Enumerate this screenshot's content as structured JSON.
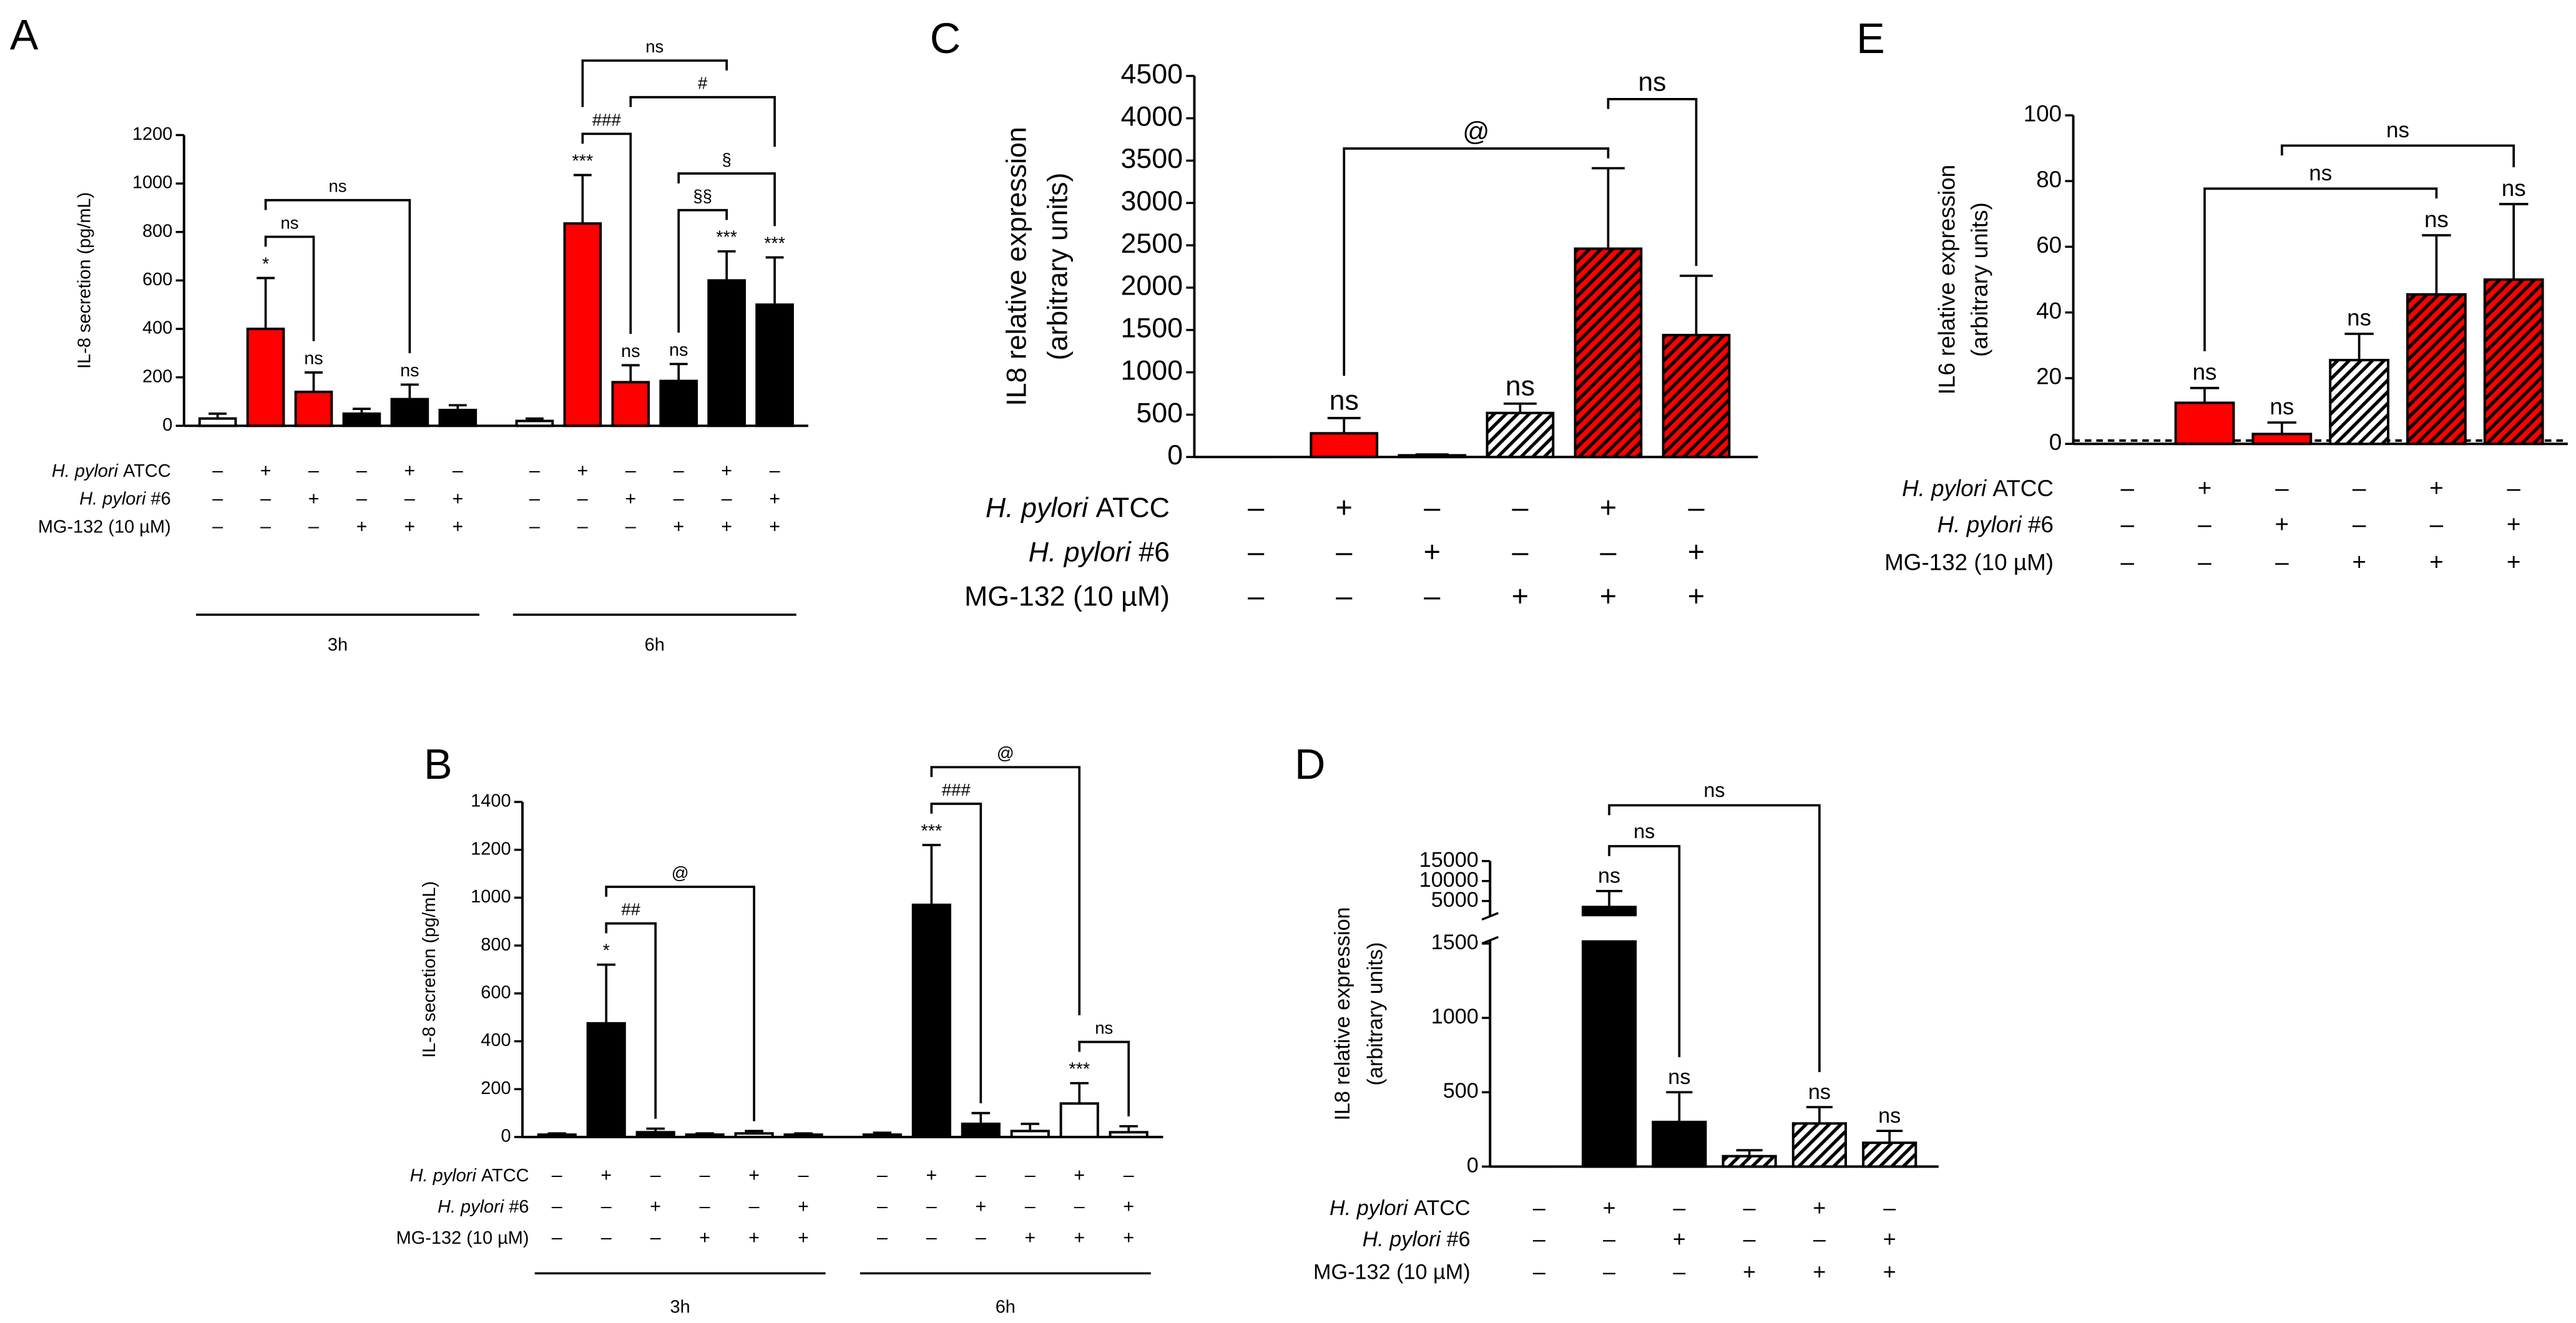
{
  "chart_data": [
    {
      "type": "bar",
      "panel": "A",
      "ylabel": [
        "IL-8 secretion (pg/mL)"
      ],
      "ylim": [
        0,
        1200
      ],
      "yticks": [
        0,
        200,
        400,
        600,
        800,
        1000,
        1200
      ],
      "values": [
        30,
        400,
        140,
        50,
        110,
        65,
        20,
        835,
        180,
        185,
        600,
        500
      ],
      "errors": [
        20,
        210,
        80,
        20,
        60,
        20,
        10,
        200,
        70,
        70,
        120,
        195
      ],
      "colors": [
        "#ffffff",
        "#ff0000",
        "#ff0000",
        "#000000",
        "#000000",
        "#000000",
        "#ffffff",
        "#ff0000",
        "#ff0000",
        "#000000",
        "#000000",
        "#000000"
      ],
      "hatch": [
        false,
        false,
        false,
        false,
        false,
        false,
        false,
        false,
        false,
        false,
        false,
        false
      ],
      "annotations": [
        null,
        "*",
        "ns",
        null,
        "ns",
        null,
        null,
        "***",
        "ns",
        "ns",
        "***",
        "***"
      ],
      "brackets": [
        {
          "from": 1,
          "to": 2,
          "label": "ns"
        },
        {
          "from": 1,
          "to": 4,
          "label": "ns"
        },
        {
          "from": 9,
          "to": 10,
          "label": "§§"
        },
        {
          "from": 9,
          "to": 11,
          "label": "§"
        },
        {
          "from": 7,
          "to": 8,
          "label": "###"
        },
        {
          "from": 8,
          "to": 11,
          "label": "#"
        },
        {
          "from": 7,
          "to": 10,
          "label": "ns"
        }
      ],
      "conditions": [
        {
          "label": [
            {
              "text": "H. pylori",
              "italic": true
            },
            {
              "text": "ATCC"
            }
          ],
          "signs": [
            "–",
            "+",
            "–",
            "–",
            "+",
            "–",
            "–",
            "+",
            "–",
            "–",
            "+",
            "–"
          ]
        },
        {
          "label": [
            {
              "text": "H. pylori",
              "italic": true
            },
            {
              "text": "#6"
            }
          ],
          "signs": [
            "–",
            "–",
            "+",
            "–",
            "–",
            "+",
            "–",
            "–",
            "+",
            "–",
            "–",
            "+"
          ]
        },
        {
          "label": [
            {
              "text": "MG-132 (10 µM)"
            }
          ],
          "signs": [
            "–",
            "–",
            "–",
            "+",
            "+",
            "+",
            "–",
            "–",
            "–",
            "+",
            "+",
            "+"
          ]
        }
      ],
      "groups": [
        {
          "label": "3h",
          "from": 0,
          "to": 5
        },
        {
          "label": "6h",
          "from": 6,
          "to": 11
        }
      ]
    },
    {
      "type": "bar",
      "panel": "B",
      "ylabel": [
        "IL-8 secretion (pg/mL)"
      ],
      "ylim": [
        0,
        1400
      ],
      "yticks": [
        0,
        200,
        400,
        600,
        800,
        1000,
        1200,
        1400
      ],
      "values": [
        10,
        475,
        20,
        10,
        15,
        10,
        10,
        970,
        55,
        25,
        140,
        20
      ],
      "errors": [
        5,
        245,
        15,
        5,
        10,
        5,
        8,
        250,
        45,
        30,
        85,
        25
      ],
      "colors": [
        "#ffffff",
        "#000000",
        "#000000",
        "#ffffff",
        "#ffffff",
        "#ffffff",
        "#ffffff",
        "#000000",
        "#000000",
        "#ffffff",
        "#ffffff",
        "#ffffff"
      ],
      "hatch": [
        false,
        false,
        false,
        false,
        false,
        false,
        false,
        false,
        false,
        false,
        false,
        false
      ],
      "annotations": [
        null,
        "*",
        null,
        null,
        null,
        null,
        null,
        "***",
        null,
        null,
        "***",
        null
      ],
      "brackets": [
        {
          "from": 1,
          "to": 2,
          "label": "##"
        },
        {
          "from": 1,
          "to": 4,
          "label": "@"
        },
        {
          "from": 10,
          "to": 11,
          "label": "ns"
        },
        {
          "from": 7,
          "to": 8,
          "label": "###"
        },
        {
          "from": 7,
          "to": 10,
          "label": "@"
        }
      ],
      "conditions": [
        {
          "label": [
            {
              "text": "H. pylori",
              "italic": true
            },
            {
              "text": "ATCC"
            }
          ],
          "signs": [
            "–",
            "+",
            "–",
            "–",
            "+",
            "–",
            "–",
            "+",
            "–",
            "–",
            "+",
            "–"
          ]
        },
        {
          "label": [
            {
              "text": "H. pylori",
              "italic": true
            },
            {
              "text": "#6"
            }
          ],
          "signs": [
            "–",
            "–",
            "+",
            "–",
            "–",
            "+",
            "–",
            "–",
            "+",
            "–",
            "–",
            "+"
          ]
        },
        {
          "label": [
            {
              "text": "MG-132 (10 µM)"
            }
          ],
          "signs": [
            "–",
            "–",
            "–",
            "+",
            "+",
            "+",
            "–",
            "–",
            "–",
            "+",
            "+",
            "+"
          ]
        }
      ],
      "groups": [
        {
          "label": "3h",
          "from": 0,
          "to": 5
        },
        {
          "label": "6h",
          "from": 6,
          "to": 11
        }
      ]
    },
    {
      "type": "bar",
      "panel": "C",
      "ylabel": [
        "IL8 relative expression",
        "(arbitrary units)"
      ],
      "ylim": [
        0,
        4500
      ],
      "yticks": [
        0,
        500,
        1000,
        1500,
        2000,
        2500,
        3000,
        3500,
        4000,
        4500
      ],
      "values": [
        0,
        280,
        20,
        520,
        2460,
        1440
      ],
      "errors": [
        0,
        180,
        10,
        110,
        950,
        700
      ],
      "colors": [
        "#ffffff",
        "#ff0000",
        "#ff0000",
        "#ffffff",
        "#ff0000",
        "#ff0000"
      ],
      "hatch": [
        false,
        false,
        false,
        true,
        true,
        true
      ],
      "annotations": [
        null,
        "ns",
        null,
        "ns",
        null,
        null
      ],
      "brackets": [
        {
          "from": 1,
          "to": 4,
          "label": "@"
        },
        {
          "from": 4,
          "to": 5,
          "label": "ns"
        }
      ],
      "conditions": [
        {
          "label": [
            {
              "text": "H. pylori",
              "italic": true
            },
            {
              "text": "ATCC"
            }
          ],
          "signs": [
            "–",
            "+",
            "–",
            "–",
            "+",
            "–"
          ]
        },
        {
          "label": [
            {
              "text": "H. pylori",
              "italic": true
            },
            {
              "text": "#6"
            }
          ],
          "signs": [
            "–",
            "–",
            "+",
            "–",
            "–",
            "+"
          ]
        },
        {
          "label": [
            {
              "text": "MG-132 (10 µM)"
            }
          ],
          "signs": [
            "–",
            "–",
            "–",
            "+",
            "+",
            "+"
          ]
        }
      ]
    },
    {
      "type": "bar",
      "panel": "D",
      "ylabel": [
        "IL8 relative expression",
        "(arbitrary units)"
      ],
      "ylim": [
        0,
        15000
      ],
      "yticks": [
        0,
        500,
        1000,
        1500,
        5000,
        10000,
        15000
      ],
      "ybreak": [
        1500,
        2000
      ],
      "values": [
        0,
        3500,
        300,
        70,
        290,
        160
      ],
      "errors": [
        0,
        4000,
        200,
        40,
        110,
        80
      ],
      "colors": [
        "#ffffff",
        "#000000",
        "#000000",
        "#ffffff",
        "#ffffff",
        "#ffffff"
      ],
      "hatch": [
        false,
        false,
        false,
        true,
        true,
        true
      ],
      "annotations": [
        null,
        "ns",
        "ns",
        null,
        "ns",
        "ns"
      ],
      "brackets": [
        {
          "from": 1,
          "to": 2,
          "label": "ns"
        },
        {
          "from": 1,
          "to": 4,
          "label": "ns"
        }
      ],
      "conditions": [
        {
          "label": [
            {
              "text": "H. pylori",
              "italic": true
            },
            {
              "text": "ATCC"
            }
          ],
          "signs": [
            "–",
            "+",
            "–",
            "–",
            "+",
            "–"
          ]
        },
        {
          "label": [
            {
              "text": "H. pylori",
              "italic": true
            },
            {
              "text": "#6"
            }
          ],
          "signs": [
            "–",
            "–",
            "+",
            "–",
            "–",
            "+"
          ]
        },
        {
          "label": [
            {
              "text": "MG-132 (10 µM)"
            }
          ],
          "signs": [
            "–",
            "–",
            "–",
            "+",
            "+",
            "+"
          ]
        }
      ]
    },
    {
      "type": "bar",
      "panel": "E",
      "ylabel": [
        "IL6 relative expression",
        "(arbitrary units)"
      ],
      "ylim": [
        0,
        100
      ],
      "yticks": [
        0,
        20,
        40,
        60,
        80,
        100
      ],
      "reference_line": 1,
      "values": [
        0,
        12.5,
        3,
        25.5,
        45.5,
        50
      ],
      "errors": [
        0,
        4.5,
        3.5,
        8,
        18,
        23
      ],
      "colors": [
        "#ffffff",
        "#ff0000",
        "#ff0000",
        "#ffffff",
        "#ff0000",
        "#ff0000"
      ],
      "hatch": [
        false,
        false,
        false,
        true,
        true,
        true
      ],
      "annotations": [
        null,
        "ns",
        "ns",
        "ns",
        "ns",
        "ns"
      ],
      "brackets": [
        {
          "from": 1,
          "to": 4,
          "label": "ns"
        },
        {
          "from": 2,
          "to": 5,
          "label": "ns"
        }
      ],
      "conditions": [
        {
          "label": [
            {
              "text": "H. pylori",
              "italic": true
            },
            {
              "text": "ATCC"
            }
          ],
          "signs": [
            "–",
            "+",
            "–",
            "–",
            "+",
            "–"
          ]
        },
        {
          "label": [
            {
              "text": "H. pylori",
              "italic": true
            },
            {
              "text": "#6"
            }
          ],
          "signs": [
            "–",
            "–",
            "+",
            "–",
            "–",
            "+"
          ]
        },
        {
          "label": [
            {
              "text": "MG-132 (10 µM)"
            }
          ],
          "signs": [
            "–",
            "–",
            "–",
            "+",
            "+",
            "+"
          ]
        }
      ]
    }
  ]
}
